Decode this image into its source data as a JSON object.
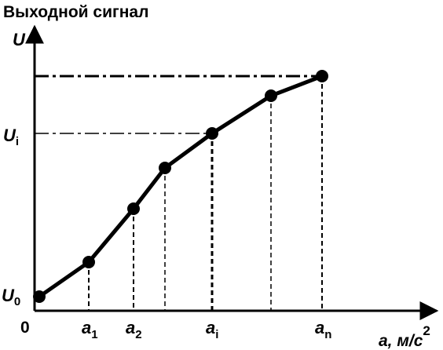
{
  "title": "Выходной сигнал",
  "y_axis": {
    "label": "U",
    "levels": [
      {
        "main": "U",
        "sub": "i"
      },
      {
        "main": "U",
        "sub": "0"
      }
    ]
  },
  "origin": "0",
  "x_axis": {
    "label": "a, м/с",
    "label_power": "2",
    "points": [
      {
        "main": "a",
        "sub": "1"
      },
      {
        "main": "a",
        "sub": "2"
      },
      {
        "main": "a",
        "sub": "i"
      },
      {
        "main": "a",
        "sub": "n"
      }
    ]
  }
}
